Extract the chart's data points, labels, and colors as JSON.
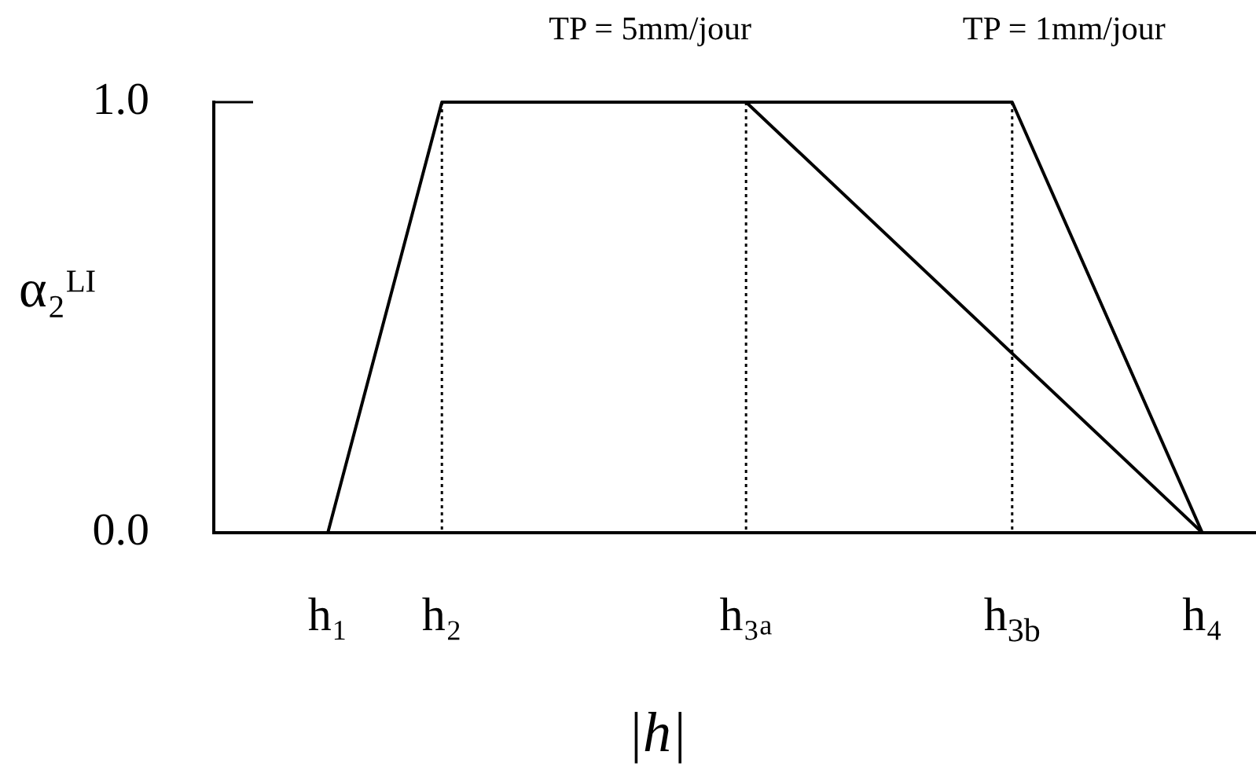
{
  "chart_data": {
    "type": "line",
    "xlabel": "|h|",
    "ylabel": "α₂ᴸᴵ",
    "categories": [
      null,
      null,
      null,
      "h₁",
      null,
      null,
      "h₂",
      null,
      null,
      null,
      null,
      null,
      null,
      null,
      "h₃ₐ",
      null,
      null,
      null,
      null,
      null,
      null,
      "h$_{3b}$",
      null,
      null,
      null,
      null,
      "h₄",
      null
    ],
    "ylim": [
      0,
      1
    ],
    "yticks": [
      {
        "value": 0,
        "label": "0.0"
      },
      {
        "value": 1,
        "label": "1.0"
      }
    ],
    "series": [
      {
        "color": "#000000",
        "values": [
          null,
          null,
          null,
          0,
          null,
          null,
          1,
          null,
          null,
          null,
          null,
          null,
          null,
          null,
          null,
          null,
          null,
          null,
          null,
          null,
          null,
          1,
          null,
          null,
          null,
          null,
          0,
          null
        ]
      },
      {
        "color": "#000000",
        "values": [
          null,
          null,
          null,
          null,
          null,
          null,
          null,
          null,
          null,
          null,
          null,
          null,
          null,
          null,
          1,
          null,
          null,
          null,
          null,
          null,
          null,
          null,
          null,
          null,
          null,
          null,
          0,
          null
        ]
      }
    ],
    "ref_lines": [
      {
        "axis": "x",
        "value": "h₂",
        "color": "#000000",
        "line_style": "dotted"
      },
      {
        "axis": "x",
        "value": "h₃ₐ",
        "color": "#000000",
        "line_style": "dotted"
      },
      {
        "axis": "x",
        "value": "h$_{3b}$",
        "color": "#000000",
        "line_style": "dotted"
      }
    ],
    "annotations": [
      {
        "text": "TP = 5mm/jour",
        "x": "h₃ₐ",
        "y": 1
      },
      {
        "text": "TP = 1mm/jour",
        "x": "h$_{3b}$",
        "y": 1
      }
    ],
    "grid": false,
    "legend": false,
    "marker": "none",
    "line_style": "solid"
  }
}
